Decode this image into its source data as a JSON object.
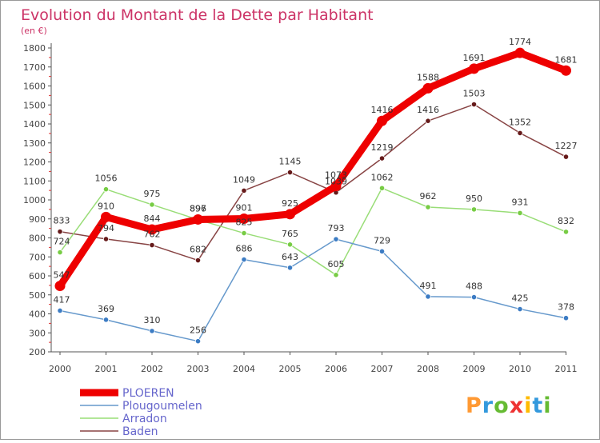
{
  "chart_data": {
    "type": "line",
    "title": "Evolution du Montant de la Dette par Habitant",
    "subtitle": "(en €)",
    "xlabel": "",
    "ylabel": "",
    "x": [
      "2000",
      "2001",
      "2002",
      "2003",
      "2004",
      "2005",
      "2006",
      "2007",
      "2008",
      "2009",
      "2010",
      "2011"
    ],
    "ylim": [
      200,
      1800
    ],
    "yticks": [
      200,
      300,
      400,
      500,
      600,
      700,
      800,
      900,
      1000,
      1100,
      1200,
      1300,
      1400,
      1500,
      1600,
      1700,
      1800
    ],
    "grid": false,
    "legend_position": "bottom-left",
    "series": [
      {
        "name": "PLOEREN",
        "color": "#ee0000",
        "point_color": "#ee0000",
        "values": [
          547,
          910,
          844,
          897,
          901,
          925,
          1073,
          1416,
          1588,
          1691,
          1774,
          1681
        ]
      },
      {
        "name": "Plougoumelen",
        "color": "#6699cc",
        "point_color": "#3c7cc4",
        "values": [
          417,
          369,
          310,
          256,
          686,
          643,
          793,
          729,
          491,
          488,
          425,
          378
        ]
      },
      {
        "name": "Arradon",
        "color": "#99dd77",
        "point_color": "#77cc44",
        "values": [
          724,
          1056,
          975,
          896,
          825,
          765,
          605,
          1062,
          962,
          950,
          931,
          832
        ]
      },
      {
        "name": "Baden",
        "color": "#884444",
        "point_color": "#661a1a",
        "values": [
          833,
          794,
          762,
          682,
          1049,
          1145,
          1039,
          1219,
          1416,
          1503,
          1352,
          1227
        ]
      }
    ]
  },
  "branding": {
    "logo_text": "Proxiti"
  },
  "colors": {
    "title": "#cc3366",
    "axis": "#444444",
    "frame": "#999999",
    "label": "#333333"
  }
}
